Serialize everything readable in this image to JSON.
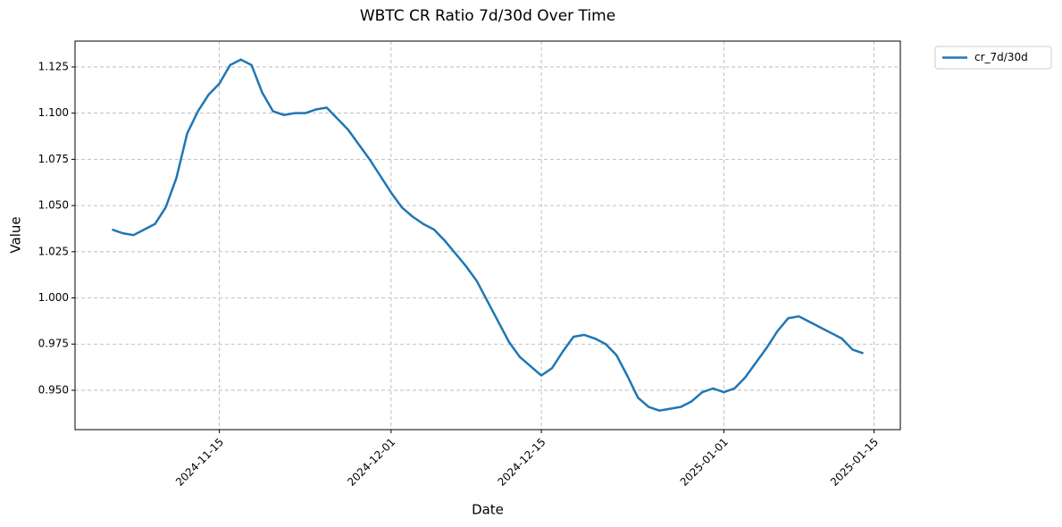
{
  "chart_data": {
    "type": "line",
    "title": "WBTC CR Ratio 7d/30d Over Time",
    "xlabel": "Date",
    "ylabel": "Value",
    "x": [
      "2024-11-05",
      "2024-11-06",
      "2024-11-07",
      "2024-11-08",
      "2024-11-09",
      "2024-11-10",
      "2024-11-11",
      "2024-11-12",
      "2024-11-13",
      "2024-11-14",
      "2024-11-15",
      "2024-11-16",
      "2024-11-17",
      "2024-11-18",
      "2024-11-19",
      "2024-11-20",
      "2024-11-21",
      "2024-11-22",
      "2024-11-23",
      "2024-11-24",
      "2024-11-25",
      "2024-11-26",
      "2024-11-27",
      "2024-11-28",
      "2024-11-29",
      "2024-11-30",
      "2024-12-01",
      "2024-12-02",
      "2024-12-03",
      "2024-12-04",
      "2024-12-05",
      "2024-12-06",
      "2024-12-07",
      "2024-12-08",
      "2024-12-09",
      "2024-12-10",
      "2024-12-11",
      "2024-12-12",
      "2024-12-13",
      "2024-12-14",
      "2024-12-15",
      "2024-12-16",
      "2024-12-17",
      "2024-12-18",
      "2024-12-19",
      "2024-12-20",
      "2024-12-21",
      "2024-12-22",
      "2024-12-23",
      "2024-12-24",
      "2024-12-25",
      "2024-12-26",
      "2024-12-27",
      "2024-12-28",
      "2024-12-29",
      "2024-12-30",
      "2024-12-31",
      "2025-01-01",
      "2025-01-02",
      "2025-01-03",
      "2025-01-04",
      "2025-01-05",
      "2025-01-06",
      "2025-01-07",
      "2025-01-08",
      "2025-01-09",
      "2025-01-10",
      "2025-01-11",
      "2025-01-12",
      "2025-01-13",
      "2025-01-14"
    ],
    "series": [
      {
        "name": "cr_7d/30d",
        "color": "#1f77b4",
        "values": [
          1.037,
          1.035,
          1.034,
          1.037,
          1.04,
          1.049,
          1.065,
          1.089,
          1.101,
          1.11,
          1.116,
          1.126,
          1.129,
          1.126,
          1.111,
          1.101,
          1.099,
          1.1,
          1.1,
          1.102,
          1.103,
          1.097,
          1.091,
          1.083,
          1.075,
          1.066,
          1.057,
          1.049,
          1.044,
          1.04,
          1.037,
          1.031,
          1.024,
          1.017,
          1.009,
          0.998,
          0.987,
          0.976,
          0.968,
          0.963,
          0.958,
          0.962,
          0.971,
          0.979,
          0.98,
          0.978,
          0.975,
          0.969,
          0.958,
          0.946,
          0.941,
          0.939,
          0.94,
          0.941,
          0.944,
          0.949,
          0.951,
          0.949,
          0.951,
          0.957,
          0.965,
          0.973,
          0.982,
          0.989,
          0.99,
          0.987,
          0.984,
          0.981,
          0.978,
          0.972,
          0.97
        ]
      }
    ],
    "xlim": [
      "2024-11-01T13:12",
      "2025-01-17T10:48"
    ],
    "xticks": [
      "2024-11-15",
      "2024-12-01",
      "2024-12-15",
      "2025-01-01",
      "2025-01-15"
    ],
    "ylim": [
      0.9287,
      1.139
    ],
    "yticks": [
      {
        "value": 0.95,
        "label": "0.950"
      },
      0.975,
      {
        "value": 1,
        "label": "1.000"
      },
      1.025,
      {
        "value": 1.05,
        "label": "1.050"
      },
      1.075,
      {
        "value": 1.1,
        "label": "1.100"
      },
      1.125
    ],
    "grid": true,
    "legend": "outside-upper-right"
  }
}
